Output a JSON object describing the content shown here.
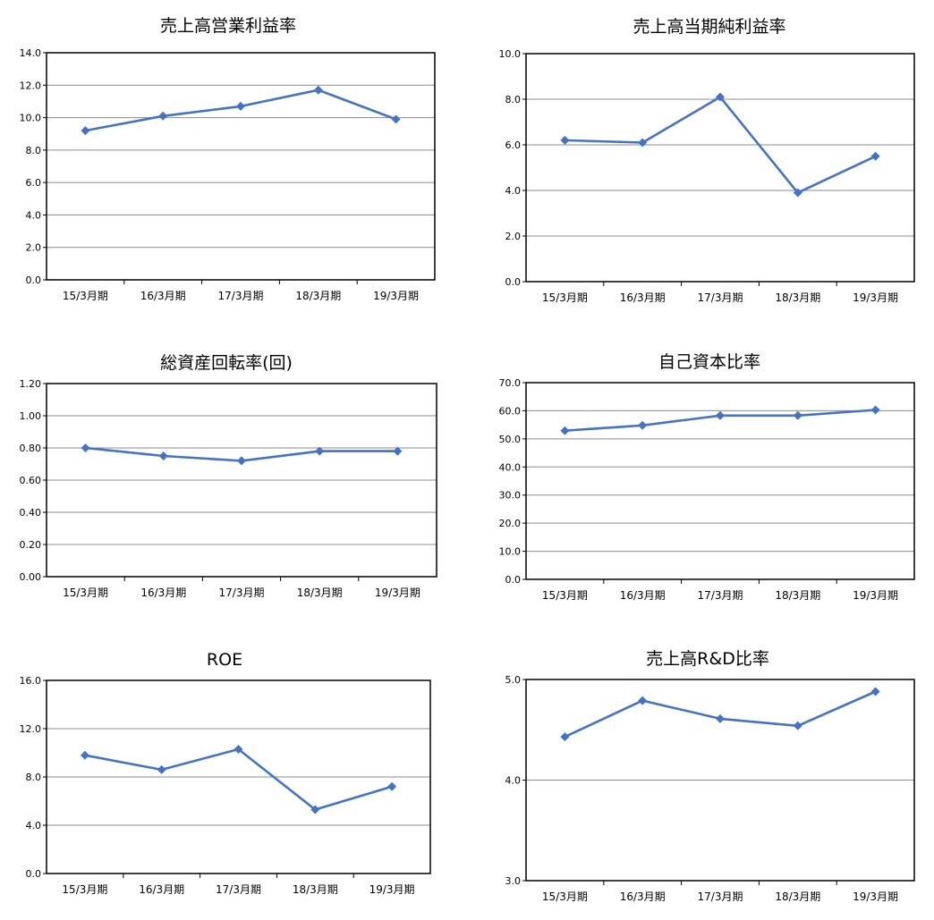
{
  "colors": {
    "series": "#4472c4",
    "grid": "#8c8c8c",
    "frame": "#000000"
  },
  "chart_data": [
    {
      "type": "line",
      "title": "売上高営業利益率",
      "categories": [
        "15/3月期",
        "16/3月期",
        "17/3月期",
        "18/3月期",
        "19/3月期"
      ],
      "values": [
        9.2,
        10.1,
        10.7,
        11.7,
        9.9
      ],
      "ylim": [
        0,
        14
      ],
      "yticks": [
        "0.0",
        "2.0",
        "4.0",
        "6.0",
        "8.0",
        "10.0",
        "12.0",
        "14.0"
      ],
      "grid": true,
      "legend": "none"
    },
    {
      "type": "line",
      "title": "売上高当期純利益率",
      "categories": [
        "15/3月期",
        "16/3月期",
        "17/3月期",
        "18/3月期",
        "19/3月期"
      ],
      "values": [
        6.2,
        6.1,
        8.1,
        3.9,
        5.5
      ],
      "ylim": [
        0,
        10
      ],
      "yticks": [
        "0.0",
        "2.0",
        "4.0",
        "6.0",
        "8.0",
        "10.0"
      ],
      "grid": true,
      "legend": "none"
    },
    {
      "type": "line",
      "title": "総資産回転率(回)",
      "categories": [
        "15/3月期",
        "16/3月期",
        "17/3月期",
        "18/3月期",
        "19/3月期"
      ],
      "values": [
        0.8,
        0.75,
        0.72,
        0.78,
        0.78
      ],
      "ylim": [
        0,
        1.2
      ],
      "yticks": [
        "0.00",
        "0.20",
        "0.40",
        "0.60",
        "0.80",
        "1.00",
        "1.20"
      ],
      "grid": true,
      "legend": "none"
    },
    {
      "type": "line",
      "title": "自己資本比率",
      "categories": [
        "15/3月期",
        "16/3月期",
        "17/3月期",
        "18/3月期",
        "19/3月期"
      ],
      "values": [
        52.9,
        54.8,
        58.3,
        58.3,
        60.3
      ],
      "ylim": [
        0,
        70
      ],
      "yticks": [
        "0.0",
        "10.0",
        "20.0",
        "30.0",
        "40.0",
        "50.0",
        "60.0",
        "70.0"
      ],
      "grid": true,
      "legend": "none"
    },
    {
      "type": "line",
      "title": "ROE",
      "categories": [
        "15/3月期",
        "16/3月期",
        "17/3月期",
        "18/3月期",
        "19/3月期"
      ],
      "values": [
        9.8,
        8.6,
        10.3,
        5.3,
        7.2
      ],
      "ylim": [
        0,
        16
      ],
      "yticks": [
        "0.0",
        "4.0",
        "8.0",
        "12.0",
        "16.0"
      ],
      "grid": true,
      "legend": "none"
    },
    {
      "type": "line",
      "title": "売上高R&D比率",
      "categories": [
        "15/3月期",
        "16/3月期",
        "17/3月期",
        "18/3月期",
        "19/3月期"
      ],
      "values": [
        4.43,
        4.79,
        4.61,
        4.54,
        4.88
      ],
      "ylim": [
        3,
        5
      ],
      "yticks": [
        "3.0",
        "4.0",
        "5.0"
      ],
      "grid": true,
      "legend": "none"
    }
  ]
}
